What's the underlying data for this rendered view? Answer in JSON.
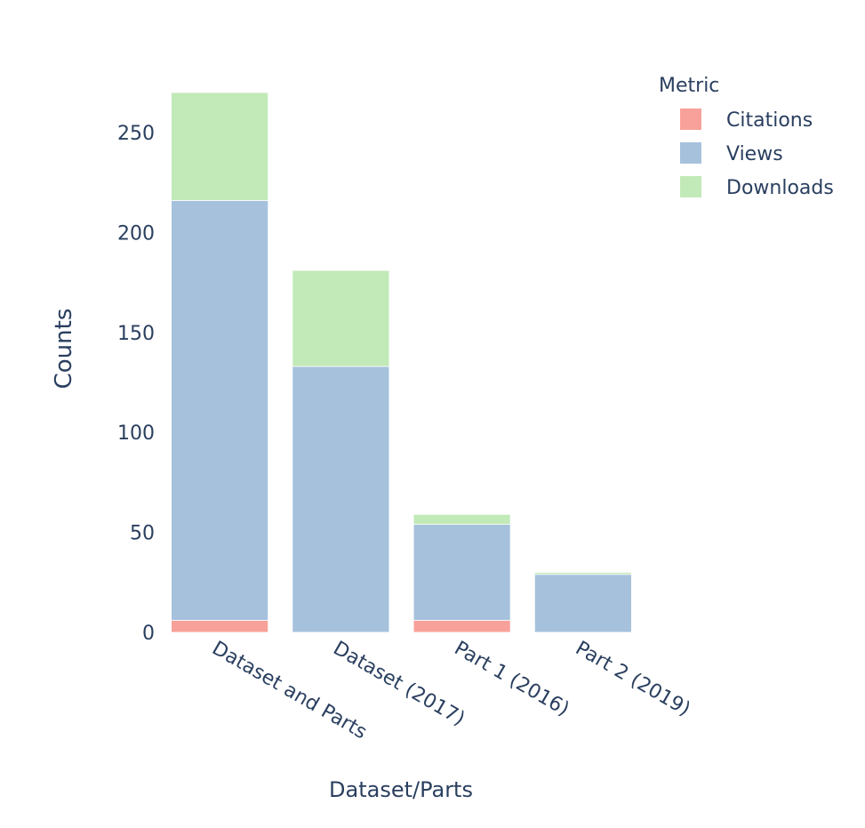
{
  "chart_data": {
    "type": "bar",
    "barmode": "stack",
    "xlabel": "Dataset/Parts",
    "ylabel": "Counts",
    "categories": [
      "Dataset and Parts",
      "Dataset (2017)",
      "Part 1 (2016)",
      "Part 2 (2019)"
    ],
    "series": [
      {
        "name": "Citations",
        "values": [
          6,
          0,
          6,
          0
        ],
        "color": "#f8a19a"
      },
      {
        "name": "Views",
        "values": [
          210,
          133,
          48,
          29
        ],
        "color": "#a6c1dc"
      },
      {
        "name": "Downloads",
        "values": [
          54,
          48,
          5,
          1
        ],
        "color": "#c2e9b8"
      }
    ],
    "ylim": [
      0,
      270
    ],
    "yticks": [
      0,
      50,
      100,
      150,
      200,
      250
    ],
    "grid": false,
    "legend": {
      "title": "Metric",
      "position": "top-right"
    }
  }
}
